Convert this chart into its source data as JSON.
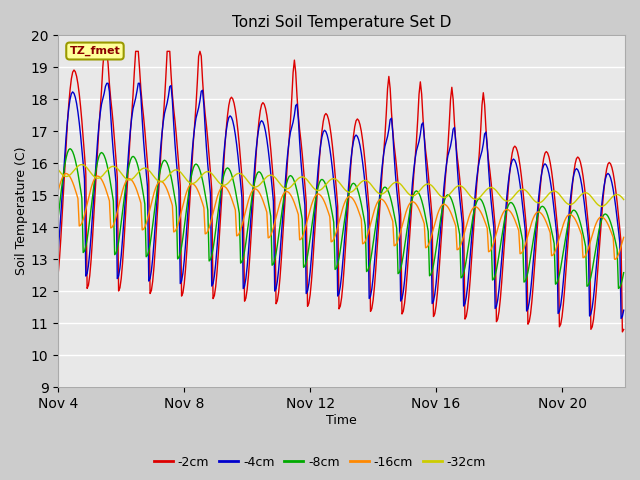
{
  "title": "Tonzi Soil Temperature Set D",
  "xlabel": "Time",
  "ylabel": "Soil Temperature (C)",
  "ylim": [
    9.0,
    20.0
  ],
  "yticks": [
    9.0,
    10.0,
    11.0,
    12.0,
    13.0,
    14.0,
    15.0,
    16.0,
    17.0,
    18.0,
    19.0,
    20.0
  ],
  "legend_label": "TZ_fmet",
  "series_colors": {
    "-2cm": "#dd0000",
    "-4cm": "#0000cc",
    "-8cm": "#00aa00",
    "-16cm": "#ff8800",
    "-32cm": "#cccc00"
  },
  "xtick_labels": [
    "Nov 4",
    "Nov 8",
    "Nov 12",
    "Nov 16",
    "Nov 20"
  ],
  "xtick_positions": [
    4,
    8,
    12,
    16,
    20
  ],
  "xlim": [
    4,
    22
  ]
}
